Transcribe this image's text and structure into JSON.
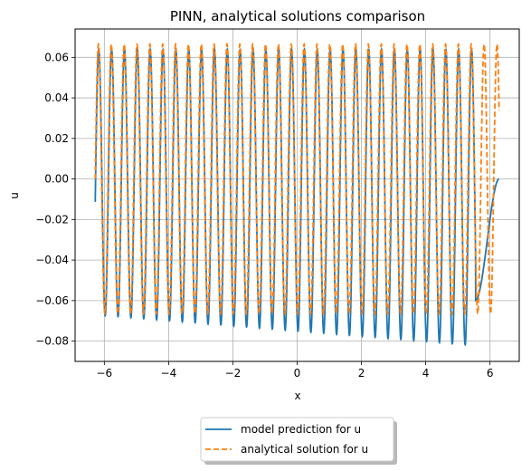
{
  "chart_data": {
    "type": "line",
    "title": "PINN, analytical solutions comparison",
    "xlabel": "x",
    "ylabel": "u",
    "xlim": [
      -6.91,
      6.91
    ],
    "ylim": [
      -0.09,
      0.074
    ],
    "xticks": [
      -6,
      -4,
      -2,
      0,
      2,
      4,
      6
    ],
    "xtick_labels": [
      "−6",
      "−4",
      "−2",
      "0",
      "2",
      "4",
      "6"
    ],
    "yticks": [
      -0.08,
      -0.06,
      -0.04,
      -0.02,
      0.0,
      0.02,
      0.04,
      0.06
    ],
    "ytick_labels": [
      "−0.08",
      "−0.06",
      "−0.04",
      "−0.02",
      "0.00",
      "0.02",
      "0.04",
      "0.06"
    ],
    "grid": true,
    "legend_placement": "below plot, centered",
    "x_range": [
      -6.283,
      6.283
    ],
    "series": [
      {
        "name": "model prediction for u",
        "color": "#1f77b4",
        "linestyle": "solid",
        "oscillation_period": 0.4,
        "peak": 0.064,
        "trough_start": -0.067,
        "trough_end": -0.082,
        "end_value": 0.0
      },
      {
        "name": "analytical solution for u",
        "color": "#ff7f0e",
        "linestyle": "dashed",
        "oscillation_period": 0.4,
        "amplitude": 0.0665
      }
    ]
  }
}
